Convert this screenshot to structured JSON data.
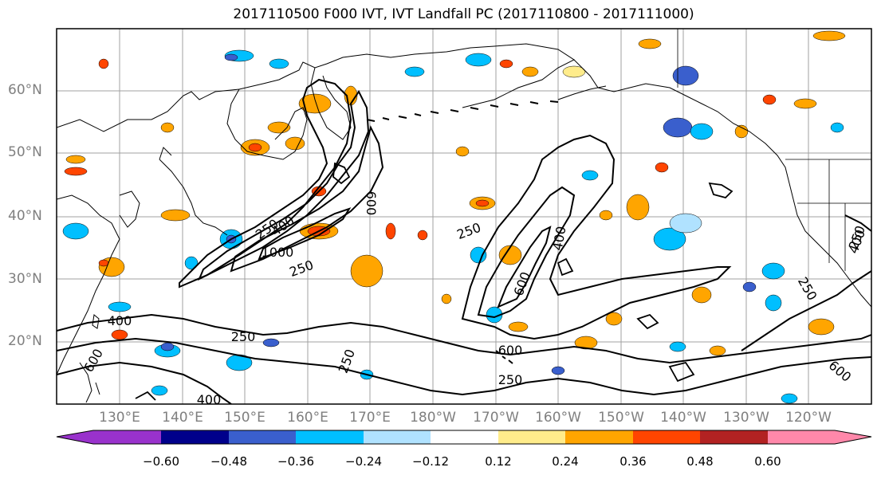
{
  "title": "2017110500 F000 IVT, IVT Landfall PC (2017110800 - 2017111000)",
  "lat_labels": [
    "60°N",
    "50°N",
    "40°N",
    "30°N",
    "20°N"
  ],
  "lon_labels": [
    "130°E",
    "140°E",
    "150°E",
    "160°E",
    "170°E",
    "180°W",
    "170°W",
    "160°W",
    "150°W",
    "140°W",
    "130°W",
    "120°W"
  ],
  "colorbar": {
    "colors": [
      "#9932cc",
      "#00008b",
      "#3a5fcd",
      "#00bfff",
      "#b0e2ff",
      "#ffffff",
      "#ffec8b",
      "#ffa500",
      "#ff4500",
      "#b22222",
      "#ff88aa"
    ],
    "tick_labels": [
      "−0.60",
      "−0.48",
      "−0.36",
      "−0.24",
      "−0.12",
      "0.12",
      "0.24",
      "0.36",
      "0.48",
      "0.60"
    ]
  },
  "contour_labels": [
    "250",
    "400",
    "600",
    "1000",
    "250",
    "400",
    "600",
    "250",
    "400",
    "600",
    "250",
    "400",
    "600",
    "250",
    "250",
    "400",
    "600",
    "250",
    "250"
  ]
}
